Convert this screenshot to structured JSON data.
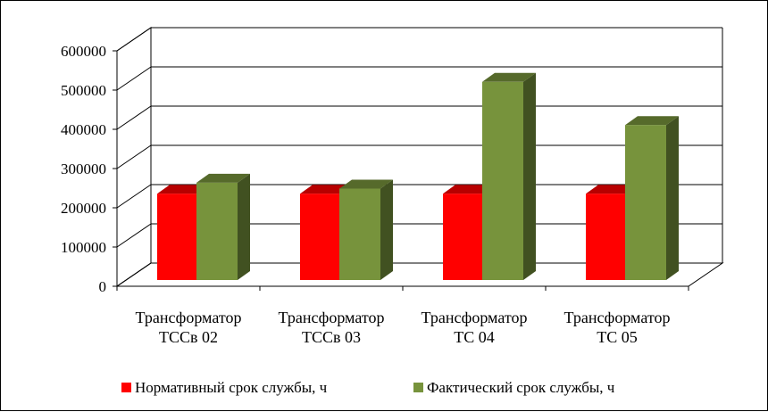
{
  "chart_data": {
    "type": "bar",
    "title": "",
    "xlabel": "",
    "ylabel": "",
    "ylim": [
      0,
      600000
    ],
    "y_ticks": [
      "0",
      "100000",
      "200000",
      "300000",
      "400000",
      "500000",
      "600000"
    ],
    "categories": [
      [
        "Трансформатор",
        "ТССв 02"
      ],
      [
        "Трансформатор",
        "ТССв 03"
      ],
      [
        "Трансформатор",
        "ТС 04"
      ],
      [
        "Трансформатор",
        "ТС 05"
      ]
    ],
    "series": [
      {
        "name": "Нормативный срок службы, ч",
        "color": "#ff0000",
        "values": [
          220000,
          220000,
          220000,
          220000
        ]
      },
      {
        "name": "Фактический срок службы, ч",
        "color": "#77933c",
        "values": [
          248000,
          233000,
          505000,
          395000
        ]
      }
    ],
    "grid": true,
    "three_d": true,
    "legend_position": "bottom"
  }
}
